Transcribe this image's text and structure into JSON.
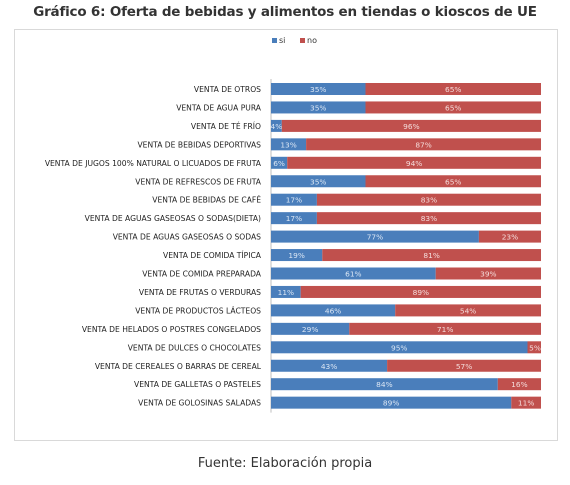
{
  "title": "Gráfico 6: Oferta de bebidas y alimentos en tiendas o kioscos de UE",
  "source": "Fuente: Elaboración propia",
  "chart_data": {
    "type": "bar",
    "orientation": "horizontal",
    "stacked": "100%",
    "legend_position": "top-center",
    "grid": false,
    "xlim": [
      0,
      100
    ],
    "categories": [
      "VENTA DE OTROS",
      "VENTA DE AGUA PURA",
      "VENTA DE TÉ FRÍO",
      "VENTA DE BEBIDAS DEPORTIVAS",
      "VENTA DE JUGOS 100% NATURAL O LICUADOS DE FRUTA",
      "VENTA DE REFRESCOS DE FRUTA",
      "VENTA DE BEBIDAS DE CAFÉ",
      "VENTA DE AGUAS GASEOSAS O SODAS(DIETA)",
      "VENTA DE AGUAS GASEOSAS O SODAS",
      "VENTA DE COMIDA TÍPICA",
      "VENTA DE COMIDA PREPARADA",
      "VENTA DE FRUTAS O VERDURAS",
      "VENTA DE PRODUCTOS LÁCTEOS",
      "VENTA DE HELADOS O POSTRES CONGELADOS",
      "VENTA DE DULCES O CHOCOLATES",
      "VENTA DE CEREALES O BARRAS DE CEREAL",
      "VENTA DE GALLETAS O PASTELES",
      "VENTA DE GOLOSINAS SALADAS"
    ],
    "series": [
      {
        "name": "si",
        "color": "#4a7ebb",
        "values": [
          35,
          35,
          4,
          13,
          6,
          35,
          17,
          17,
          77,
          19,
          61,
          11,
          46,
          29,
          95,
          43,
          84,
          89
        ],
        "labels": [
          "35%",
          "35%",
          "4%",
          "13%",
          "6%",
          "35%",
          "17%",
          "17%",
          "77%",
          "19%",
          "61%",
          "11%",
          "46%",
          "29%",
          "95%",
          "43%",
          "84%",
          "89%"
        ]
      },
      {
        "name": "no",
        "color": "#c0504d",
        "values": [
          65,
          65,
          96,
          87,
          94,
          65,
          83,
          83,
          23,
          81,
          39,
          89,
          54,
          71,
          5,
          57,
          16,
          11
        ],
        "labels": [
          "65%",
          "65%",
          "96%",
          "87%",
          "94%",
          "65%",
          "83%",
          "83%",
          "23%",
          "81%",
          "39%",
          "89%",
          "54%",
          "71%",
          "5%",
          "57%",
          "16%",
          "11%"
        ]
      }
    ]
  }
}
